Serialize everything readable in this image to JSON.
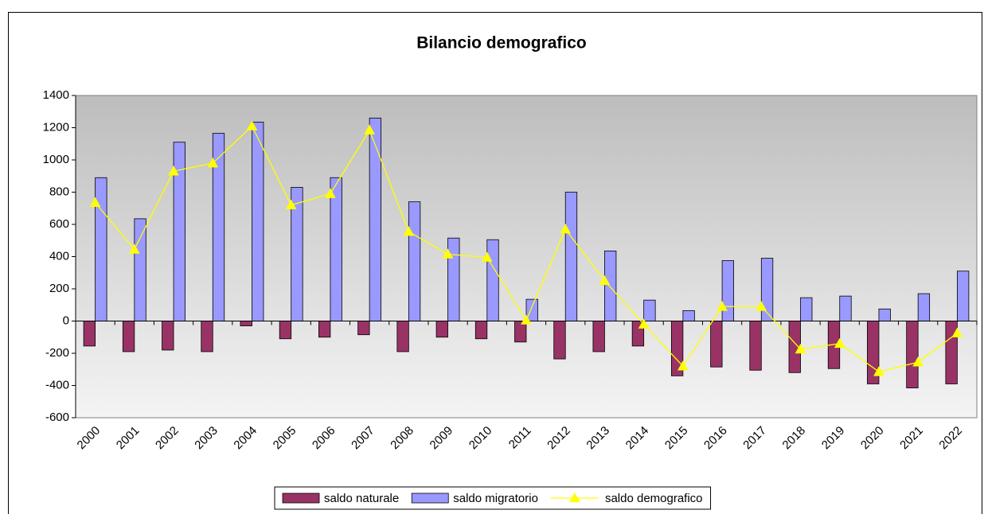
{
  "chart_data": {
    "type": "bar",
    "title": "Bilancio demografico",
    "categories": [
      "2000",
      "2001",
      "2002",
      "2003",
      "2004",
      "2005",
      "2006",
      "2007",
      "2008",
      "2009",
      "2010",
      "2011",
      "2012",
      "2013",
      "2014",
      "2015",
      "2016",
      "2017",
      "2018",
      "2019",
      "2020",
      "2021",
      "2022"
    ],
    "series": [
      {
        "name": "saldo naturale",
        "type": "bar",
        "color": "#993366",
        "values": [
          -155,
          -190,
          -180,
          -190,
          -30,
          -110,
          -100,
          -85,
          -190,
          -100,
          -110,
          -130,
          -235,
          -190,
          -155,
          -340,
          -285,
          -305,
          -320,
          -295,
          -390,
          -415,
          -390
        ]
      },
      {
        "name": "saldo migratorio",
        "type": "bar",
        "color": "#9999ff",
        "values": [
          890,
          635,
          1110,
          1165,
          1235,
          830,
          890,
          1260,
          740,
          515,
          505,
          135,
          800,
          435,
          130,
          65,
          375,
          390,
          145,
          155,
          75,
          170,
          310
        ]
      },
      {
        "name": "saldo demografico",
        "type": "line",
        "color": "#ffff00",
        "values": [
          735,
          445,
          930,
          980,
          1210,
          720,
          790,
          1185,
          555,
          415,
          395,
          5,
          570,
          250,
          -20,
          -280,
          90,
          90,
          -175,
          -140,
          -315,
          -255,
          -75
        ]
      }
    ],
    "ylim": [
      -600,
      1400
    ],
    "yticks": [
      -600,
      -400,
      -200,
      0,
      200,
      400,
      600,
      800,
      1000,
      1200,
      1400
    ],
    "legend": "bottom"
  }
}
